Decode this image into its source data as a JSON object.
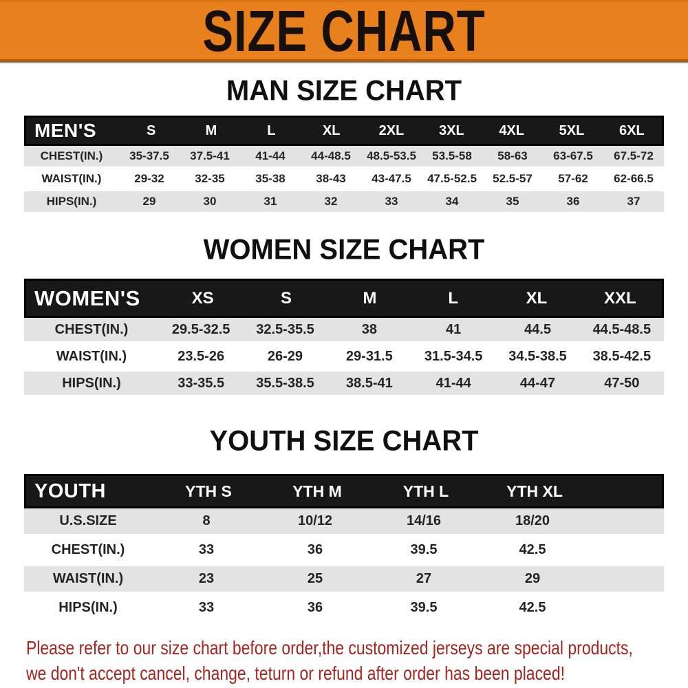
{
  "banner": {
    "title": "SIZE CHART"
  },
  "colors": {
    "banner_bg": "#E8811D",
    "table_header_bg": "#181818",
    "shade_row_bg": "#E3E3E3",
    "footer_text": "#A8241E"
  },
  "sections": {
    "men": {
      "heading": "MAN SIZE CHART",
      "header_label": "MEN'S",
      "columns": [
        "S",
        "M",
        "L",
        "XL",
        "2XL",
        "3XL",
        "4XL",
        "5XL",
        "6XL"
      ],
      "rows": [
        {
          "label": "CHEST(IN.)",
          "values": [
            "35-37.5",
            "37.5-41",
            "41-44",
            "44-48.5",
            "48.5-53.5",
            "53.5-58",
            "58-63",
            "63-67.5",
            "67.5-72"
          ]
        },
        {
          "label": "WAIST(IN.)",
          "values": [
            "29-32",
            "32-35",
            "35-38",
            "38-43",
            "43-47.5",
            "47.5-52.5",
            "52.5-57",
            "57-62",
            "62-66.5"
          ]
        },
        {
          "label": "HIPS(IN.)",
          "values": [
            "29",
            "30",
            "31",
            "32",
            "33",
            "34",
            "35",
            "36",
            "37"
          ]
        }
      ]
    },
    "women": {
      "heading": "WOMEN SIZE CHART",
      "header_label": "WOMEN'S",
      "columns": [
        "XS",
        "S",
        "M",
        "L",
        "XL",
        "XXL"
      ],
      "rows": [
        {
          "label": "CHEST(IN.)",
          "values": [
            "29.5-32.5",
            "32.5-35.5",
            "38",
            "41",
            "44.5",
            "44.5-48.5"
          ]
        },
        {
          "label": "WAIST(IN.)",
          "values": [
            "23.5-26",
            "26-29",
            "29-31.5",
            "31.5-34.5",
            "34.5-38.5",
            "38.5-42.5"
          ]
        },
        {
          "label": "HIPS(IN.)",
          "values": [
            "33-35.5",
            "35.5-38.5",
            "38.5-41",
            "41-44",
            "44-47",
            "47-50"
          ]
        }
      ]
    },
    "youth": {
      "heading": "YOUTH SIZE CHART",
      "header_label": "YOUTH",
      "columns": [
        "YTH S",
        "YTH M",
        "YTH L",
        "YTH XL"
      ],
      "rows": [
        {
          "label": "U.S.SIZE",
          "values": [
            "8",
            "10/12",
            "14/16",
            "18/20"
          ]
        },
        {
          "label": "CHEST(IN.)",
          "values": [
            "33",
            "36",
            "39.5",
            "42.5"
          ]
        },
        {
          "label": "WAIST(IN.)",
          "values": [
            "23",
            "25",
            "27",
            "29"
          ]
        },
        {
          "label": "HIPS(IN.)",
          "values": [
            "33",
            "36",
            "39.5",
            "42.5"
          ]
        }
      ]
    }
  },
  "footer": {
    "line1": "Please refer to our size chart before order,the customized jerseys are special products,",
    "line2": "we don't accept cancel, change, teturn or refund after order has been placed!"
  }
}
